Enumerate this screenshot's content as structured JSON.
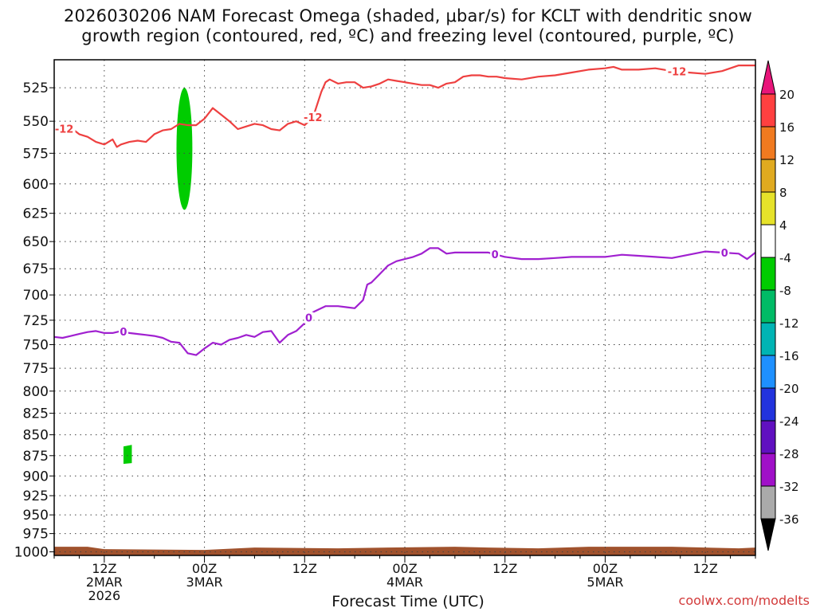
{
  "title": {
    "line1": "2026030206 NAM Forecast Omega (shaded, μbar/s) for KCLT with dendritic snow",
    "line2": "growth region (contoured, red, ºC) and freezing level (contoured, purple, ºC)"
  },
  "credit": "coolwx.com/modelts",
  "chart_data": {
    "type": "time-height",
    "title": "2026030206 NAM Forecast Omega (shaded, μbar/s) for KCLT with dendritic snow growth region (contoured, red, ºC) and freezing level (contoured, purple, ºC)",
    "xlabel": "Forecast Time (UTC)",
    "ylabel": "",
    "xlim_hours": [
      6,
      90
    ],
    "x_ticks": [
      {
        "hour": 12,
        "lines": [
          "12Z",
          "2MAR",
          "2026"
        ]
      },
      {
        "hour": 24,
        "lines": [
          "00Z",
          "3MAR"
        ]
      },
      {
        "hour": 36,
        "lines": [
          "12Z"
        ]
      },
      {
        "hour": 48,
        "lines": [
          "00Z",
          "4MAR"
        ]
      },
      {
        "hour": 60,
        "lines": [
          "12Z"
        ]
      },
      {
        "hour": 72,
        "lines": [
          "00Z",
          "5MAR"
        ]
      },
      {
        "hour": 84,
        "lines": [
          "12Z"
        ]
      }
    ],
    "y_ticks_hpa": [
      525,
      550,
      575,
      600,
      625,
      650,
      675,
      700,
      725,
      750,
      775,
      800,
      825,
      850,
      875,
      900,
      925,
      950,
      975,
      1000
    ],
    "ylim_hpa": [
      505,
      1005
    ],
    "y_scale": "log-pressure",
    "grid": true,
    "series": [
      {
        "name": "-12",
        "color": "#ee4040",
        "label": "-12",
        "label_hours": [
          7.2,
          37.0,
          80.6
        ],
        "x": [
          6,
          7,
          8,
          9,
          10,
          11,
          12,
          13,
          13.5,
          14,
          15,
          16,
          17,
          18,
          19,
          20,
          21,
          22,
          23,
          24,
          25,
          26,
          27,
          28,
          29,
          30,
          31,
          32,
          33,
          34,
          35,
          36,
          37,
          38,
          38.5,
          39,
          40,
          41,
          42,
          43,
          44,
          45,
          46,
          47,
          48,
          49,
          50,
          51,
          52,
          53,
          54,
          55,
          56,
          57,
          58,
          59,
          60,
          62,
          64,
          66,
          68,
          70,
          72,
          73,
          74,
          76,
          78,
          80,
          82,
          84,
          86,
          88,
          90
        ],
        "y": [
          554,
          556,
          555,
          560,
          562,
          566,
          568,
          564,
          570,
          568,
          566,
          565,
          566,
          560,
          557,
          556,
          552,
          553,
          553,
          548,
          540,
          545,
          550,
          556,
          554,
          552,
          553,
          556,
          557,
          552,
          550,
          553,
          547,
          528,
          521,
          519,
          522,
          521,
          521,
          525,
          524,
          522,
          519,
          520,
          521,
          522,
          523,
          523,
          525,
          522,
          521,
          517,
          516,
          516,
          517,
          517,
          518,
          519,
          517,
          516,
          514,
          512,
          511,
          510,
          512,
          512,
          511,
          513,
          514,
          515,
          513,
          509,
          509
        ]
      },
      {
        "name": "0",
        "color": "#a020d0",
        "label": "0",
        "label_hours": [
          14.3,
          36.5,
          58.8,
          86.3
        ],
        "x": [
          6,
          7,
          8,
          9,
          10,
          11,
          12,
          13,
          14,
          15,
          16,
          17,
          18,
          19,
          20,
          21,
          22,
          23,
          24,
          25,
          26,
          27,
          28,
          29,
          30,
          31,
          32,
          33,
          34,
          35,
          36,
          37,
          38,
          38.5,
          39,
          40,
          41,
          42,
          43,
          43.5,
          44,
          45,
          46,
          47,
          48,
          49,
          50,
          51,
          52,
          53,
          54,
          56,
          58,
          60,
          62,
          64,
          66,
          68,
          70,
          72,
          74,
          76,
          78,
          80,
          82,
          84,
          86,
          88,
          89,
          90
        ],
        "y": [
          742,
          743,
          741,
          739,
          737,
          736,
          738,
          738,
          736,
          738,
          739,
          740,
          741,
          743,
          747,
          748,
          759,
          761,
          754,
          748,
          750,
          745,
          743,
          740,
          742,
          737,
          736,
          748,
          740,
          736,
          728,
          717,
          713,
          711,
          711,
          711,
          712,
          713,
          705,
          690,
          688,
          680,
          672,
          668,
          666,
          664,
          661,
          656,
          656,
          661,
          660,
          660,
          660,
          664,
          666,
          666,
          665,
          664,
          664,
          664,
          662,
          663,
          664,
          665,
          662,
          659,
          660,
          661,
          666,
          660
        ]
      }
    ],
    "shading": [
      {
        "kind": "blob",
        "value_bin": "-8 to -4",
        "color": "#00cc00",
        "hour_center": 21.6,
        "hour_half_width": 0.95,
        "top_hpa": 525,
        "bottom_hpa": 622
      },
      {
        "kind": "patch",
        "value_bin": "-8 to -4",
        "color": "#00cc00",
        "hours": [
          14.3,
          15.3
        ],
        "hpa": [
          862,
          885
        ]
      },
      {
        "kind": "terrain",
        "color": "#a0522d",
        "top_hpa": 993
      }
    ],
    "colorbar": {
      "labels": [
        "20",
        "16",
        "12",
        "8",
        "4",
        "-4",
        "-8",
        "-12",
        "-16",
        "-20",
        "-24",
        "-28",
        "-32",
        "-36"
      ],
      "bins": [
        {
          "from": 20,
          "to": 16,
          "color": "#ff4040"
        },
        {
          "from": 16,
          "to": 12,
          "color": "#f07a20"
        },
        {
          "from": 12,
          "to": 8,
          "color": "#e0aa20"
        },
        {
          "from": 8,
          "to": 4,
          "color": "#e6e22a"
        },
        {
          "from": 4,
          "to": -4,
          "color": "#ffffff"
        },
        {
          "from": -4,
          "to": -8,
          "color": "#00cc00"
        },
        {
          "from": -8,
          "to": -12,
          "color": "#00bb66"
        },
        {
          "from": -12,
          "to": -16,
          "color": "#00b4b4"
        },
        {
          "from": -16,
          "to": -20,
          "color": "#1e90ff"
        },
        {
          "from": -20,
          "to": -24,
          "color": "#2233dd"
        },
        {
          "from": -24,
          "to": -28,
          "color": "#6010c0"
        },
        {
          "from": -28,
          "to": -32,
          "color": "#a010c8"
        },
        {
          "from": -32,
          "to": -36,
          "color": "#aaaaaa"
        }
      ],
      "top_arrow_color": "#e8157a",
      "bottom_arrow_color": "#000000"
    }
  }
}
